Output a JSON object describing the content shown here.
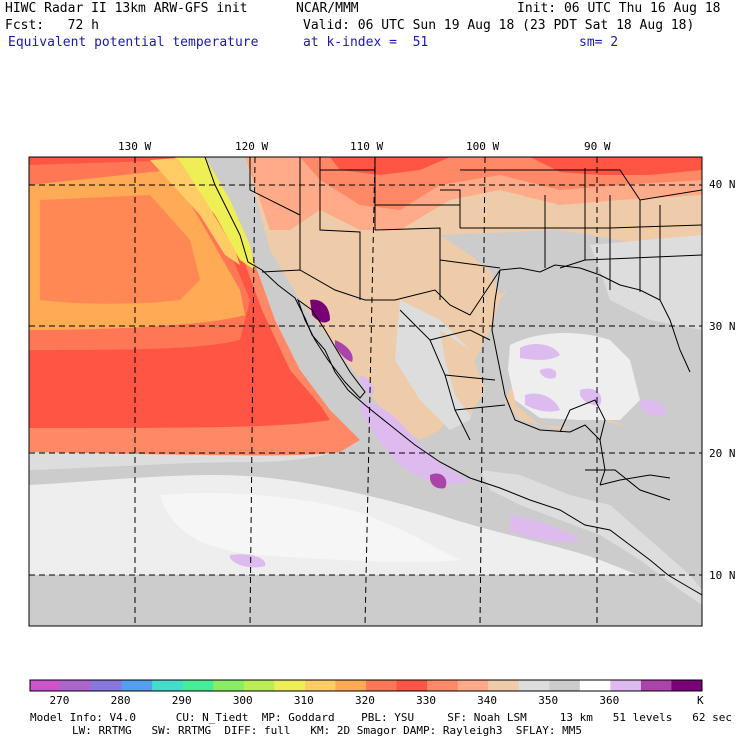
{
  "header": {
    "model": "HIWC Radar II 13km ARW-GFS init",
    "org": "NCAR/MMM",
    "init": "Init: 06 UTC Thu 16 Aug 18",
    "fcst": "Fcst:   72 h",
    "valid": "Valid: 06 UTC Sun 19 Aug 18 (23 PDT Sat 18 Aug 18)",
    "field": "Equivalent potential temperature",
    "level": "at k-index =  51",
    "smooth": "sm= 2"
  },
  "map": {
    "lon_labels": [
      "130 W",
      "120 W",
      "110 W",
      "100 W",
      "90 W"
    ],
    "lat_labels": [
      "40 N",
      "30 N",
      "20 N",
      "10 N"
    ]
  },
  "colorbar": {
    "unit": "K",
    "tick_labels": [
      "270",
      "280",
      "290",
      "300",
      "310",
      "320",
      "330",
      "340",
      "350",
      "360"
    ],
    "colors": [
      "#cc55cc",
      "#aa66cc",
      "#8877dd",
      "#55a0ee",
      "#44ddcc",
      "#44ee99",
      "#88ee66",
      "#bbee55",
      "#eeee55",
      "#ffcc66",
      "#ffaa55",
      "#ff7755",
      "#ff5544",
      "#ff8866",
      "#ffaa88",
      "#eeccaa",
      "#dddddd",
      "#cccccc",
      "#ffffff",
      "#ddbbee",
      "#aa44aa",
      "#770077"
    ]
  },
  "footer": {
    "line1": "Model Info: V4.0      CU: N_Tiedt  MP: Goddard    PBL: YSU     SF: Noah LSM     13 km   51 levels   62 sec",
    "line2": "LW: RRTMG   SW: RRTMG  DIFF: full   KM: 2D Smagor DAMP: Rayleigh3  SFLAY: MM5"
  }
}
